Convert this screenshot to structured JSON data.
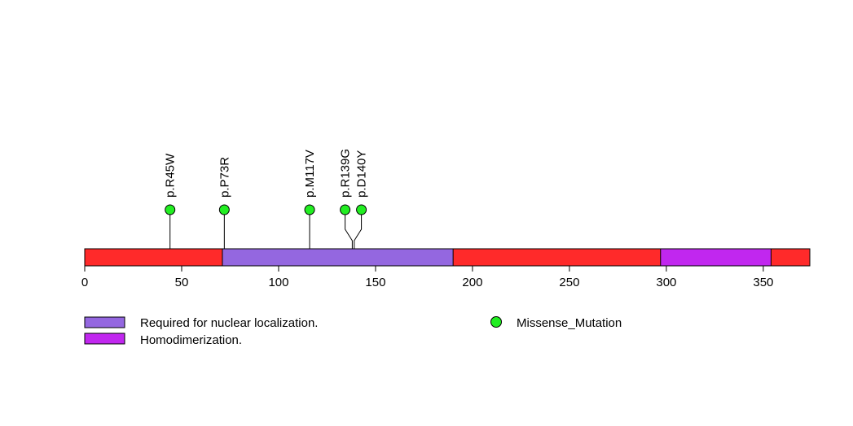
{
  "chart_data": {
    "type": "lollipop",
    "protein_length": 374,
    "x_ticks": [
      0,
      50,
      100,
      150,
      200,
      250,
      300,
      350
    ],
    "x_tick_labels": [
      "0",
      "50",
      "100",
      "150",
      "200",
      "250",
      "300",
      "350"
    ],
    "backbone_color": "#ff2a2a",
    "domains": [
      {
        "name": "Required for nuclear localization.",
        "start": 71,
        "end": 190,
        "color": "#9467e0"
      },
      {
        "name": "Homodimerization.",
        "start": 297,
        "end": 354,
        "color": "#c127ef"
      }
    ],
    "mutations": [
      {
        "label": "p.R45W",
        "position": 44,
        "type": "Missense_Mutation"
      },
      {
        "label": "p.P73R",
        "position": 72,
        "type": "Missense_Mutation"
      },
      {
        "label": "p.M117V",
        "position": 116,
        "type": "Missense_Mutation"
      },
      {
        "label": "p.R139G",
        "position": 138,
        "type": "Missense_Mutation"
      },
      {
        "label": "p.D140Y",
        "position": 139,
        "type": "Missense_Mutation"
      }
    ],
    "legend": {
      "domains": [
        "Required for nuclear localization.",
        "Homodimerization."
      ],
      "mutation_types": [
        {
          "name": "Missense_Mutation",
          "color": "#22ee22"
        }
      ]
    }
  }
}
